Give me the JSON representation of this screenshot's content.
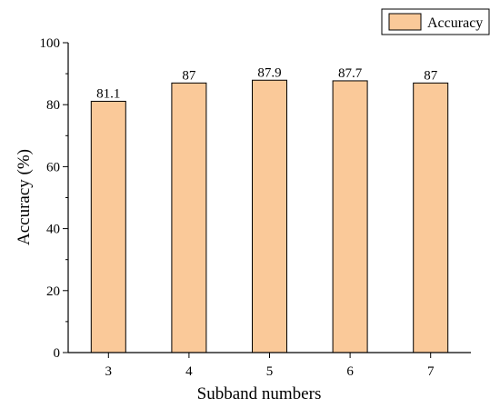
{
  "chart_data": {
    "type": "bar",
    "categories": [
      "3",
      "4",
      "5",
      "6",
      "7"
    ],
    "series": [
      {
        "name": "Accuracy",
        "values": [
          81.1,
          87,
          87.9,
          87.7,
          87
        ]
      }
    ],
    "data_labels": [
      "81.1",
      "87",
      "87.9",
      "87.7",
      "87"
    ],
    "xlabel": "Subband numbers",
    "ylabel": "Accuracy (%)",
    "ylim": [
      0,
      100
    ],
    "yticks": [
      0,
      20,
      40,
      60,
      80,
      100
    ],
    "grid": false,
    "legend_position": "top-right",
    "colors": {
      "bar_fill": "#FAC999",
      "bar_stroke": "#000000"
    }
  }
}
